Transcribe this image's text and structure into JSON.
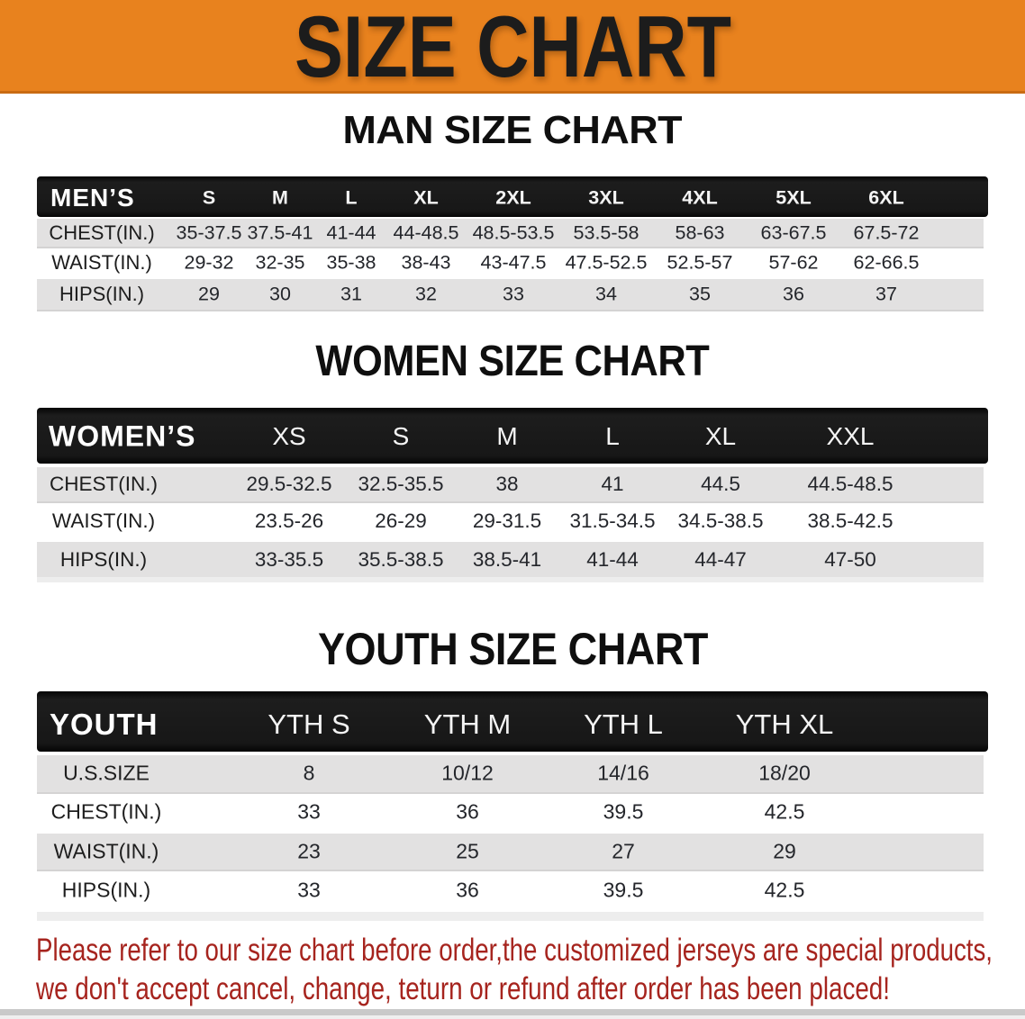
{
  "banner": {
    "title": "SIZE CHART",
    "background_color": "#E8821E"
  },
  "sections": [
    {
      "heading": "MAN SIZE CHART",
      "table": {
        "header_label": "MEN’S",
        "columns": [
          "S",
          "M",
          "L",
          "XL",
          "2XL",
          "3XL",
          "4XL",
          "5XL",
          "6XL"
        ],
        "rows": [
          {
            "label": "CHEST(IN.)",
            "values": [
              "35-37.5",
              "37.5-41",
              "41-44",
              "44-48.5",
              "48.5-53.5",
              "53.5-58",
              "58-63",
              "63-67.5",
              "67.5-72"
            ]
          },
          {
            "label": "WAIST(IN.)",
            "values": [
              "29-32",
              "32-35",
              "35-38",
              "38-43",
              "43-47.5",
              "47.5-52.5",
              "52.5-57",
              "57-62",
              "62-66.5"
            ]
          },
          {
            "label": "HIPS(IN.)",
            "values": [
              "29",
              "30",
              "31",
              "32",
              "33",
              "34",
              "35",
              "36",
              "37"
            ]
          }
        ]
      }
    },
    {
      "heading": "WOMEN SIZE CHART",
      "table": {
        "header_label": "WOMEN’S",
        "columns": [
          "XS",
          "S",
          "M",
          "L",
          "XL",
          "XXL"
        ],
        "rows": [
          {
            "label": "CHEST(IN.)",
            "values": [
              "29.5-32.5",
              "32.5-35.5",
              "38",
              "41",
              "44.5",
              "44.5-48.5"
            ]
          },
          {
            "label": "WAIST(IN.)",
            "values": [
              "23.5-26",
              "26-29",
              "29-31.5",
              "31.5-34.5",
              "34.5-38.5",
              "38.5-42.5"
            ]
          },
          {
            "label": "HIPS(IN.)",
            "values": [
              "33-35.5",
              "35.5-38.5",
              "38.5-41",
              "41-44",
              "44-47",
              "47-50"
            ]
          }
        ]
      }
    },
    {
      "heading": "YOUTH SIZE CHART",
      "table": {
        "header_label": "YOUTH",
        "columns": [
          "YTH S",
          "YTH M",
          "YTH L",
          "YTH XL"
        ],
        "rows": [
          {
            "label": "U.S.SIZE",
            "values": [
              "8",
              "10/12",
              "14/16",
              "18/20"
            ]
          },
          {
            "label": "CHEST(IN.)",
            "values": [
              "33",
              "36",
              "39.5",
              "42.5"
            ]
          },
          {
            "label": "WAIST(IN.)",
            "values": [
              "23",
              "25",
              "27",
              "29"
            ]
          },
          {
            "label": "HIPS(IN.)",
            "values": [
              "33",
              "36",
              "39.5",
              "42.5"
            ]
          }
        ]
      }
    }
  ],
  "footnote": {
    "color": "#A6241E",
    "lines": [
      "Please refer to our size chart before order,the customized jerseys are special products,",
      "we don't accept cancel, change, teturn or refund after order has been placed!"
    ]
  }
}
